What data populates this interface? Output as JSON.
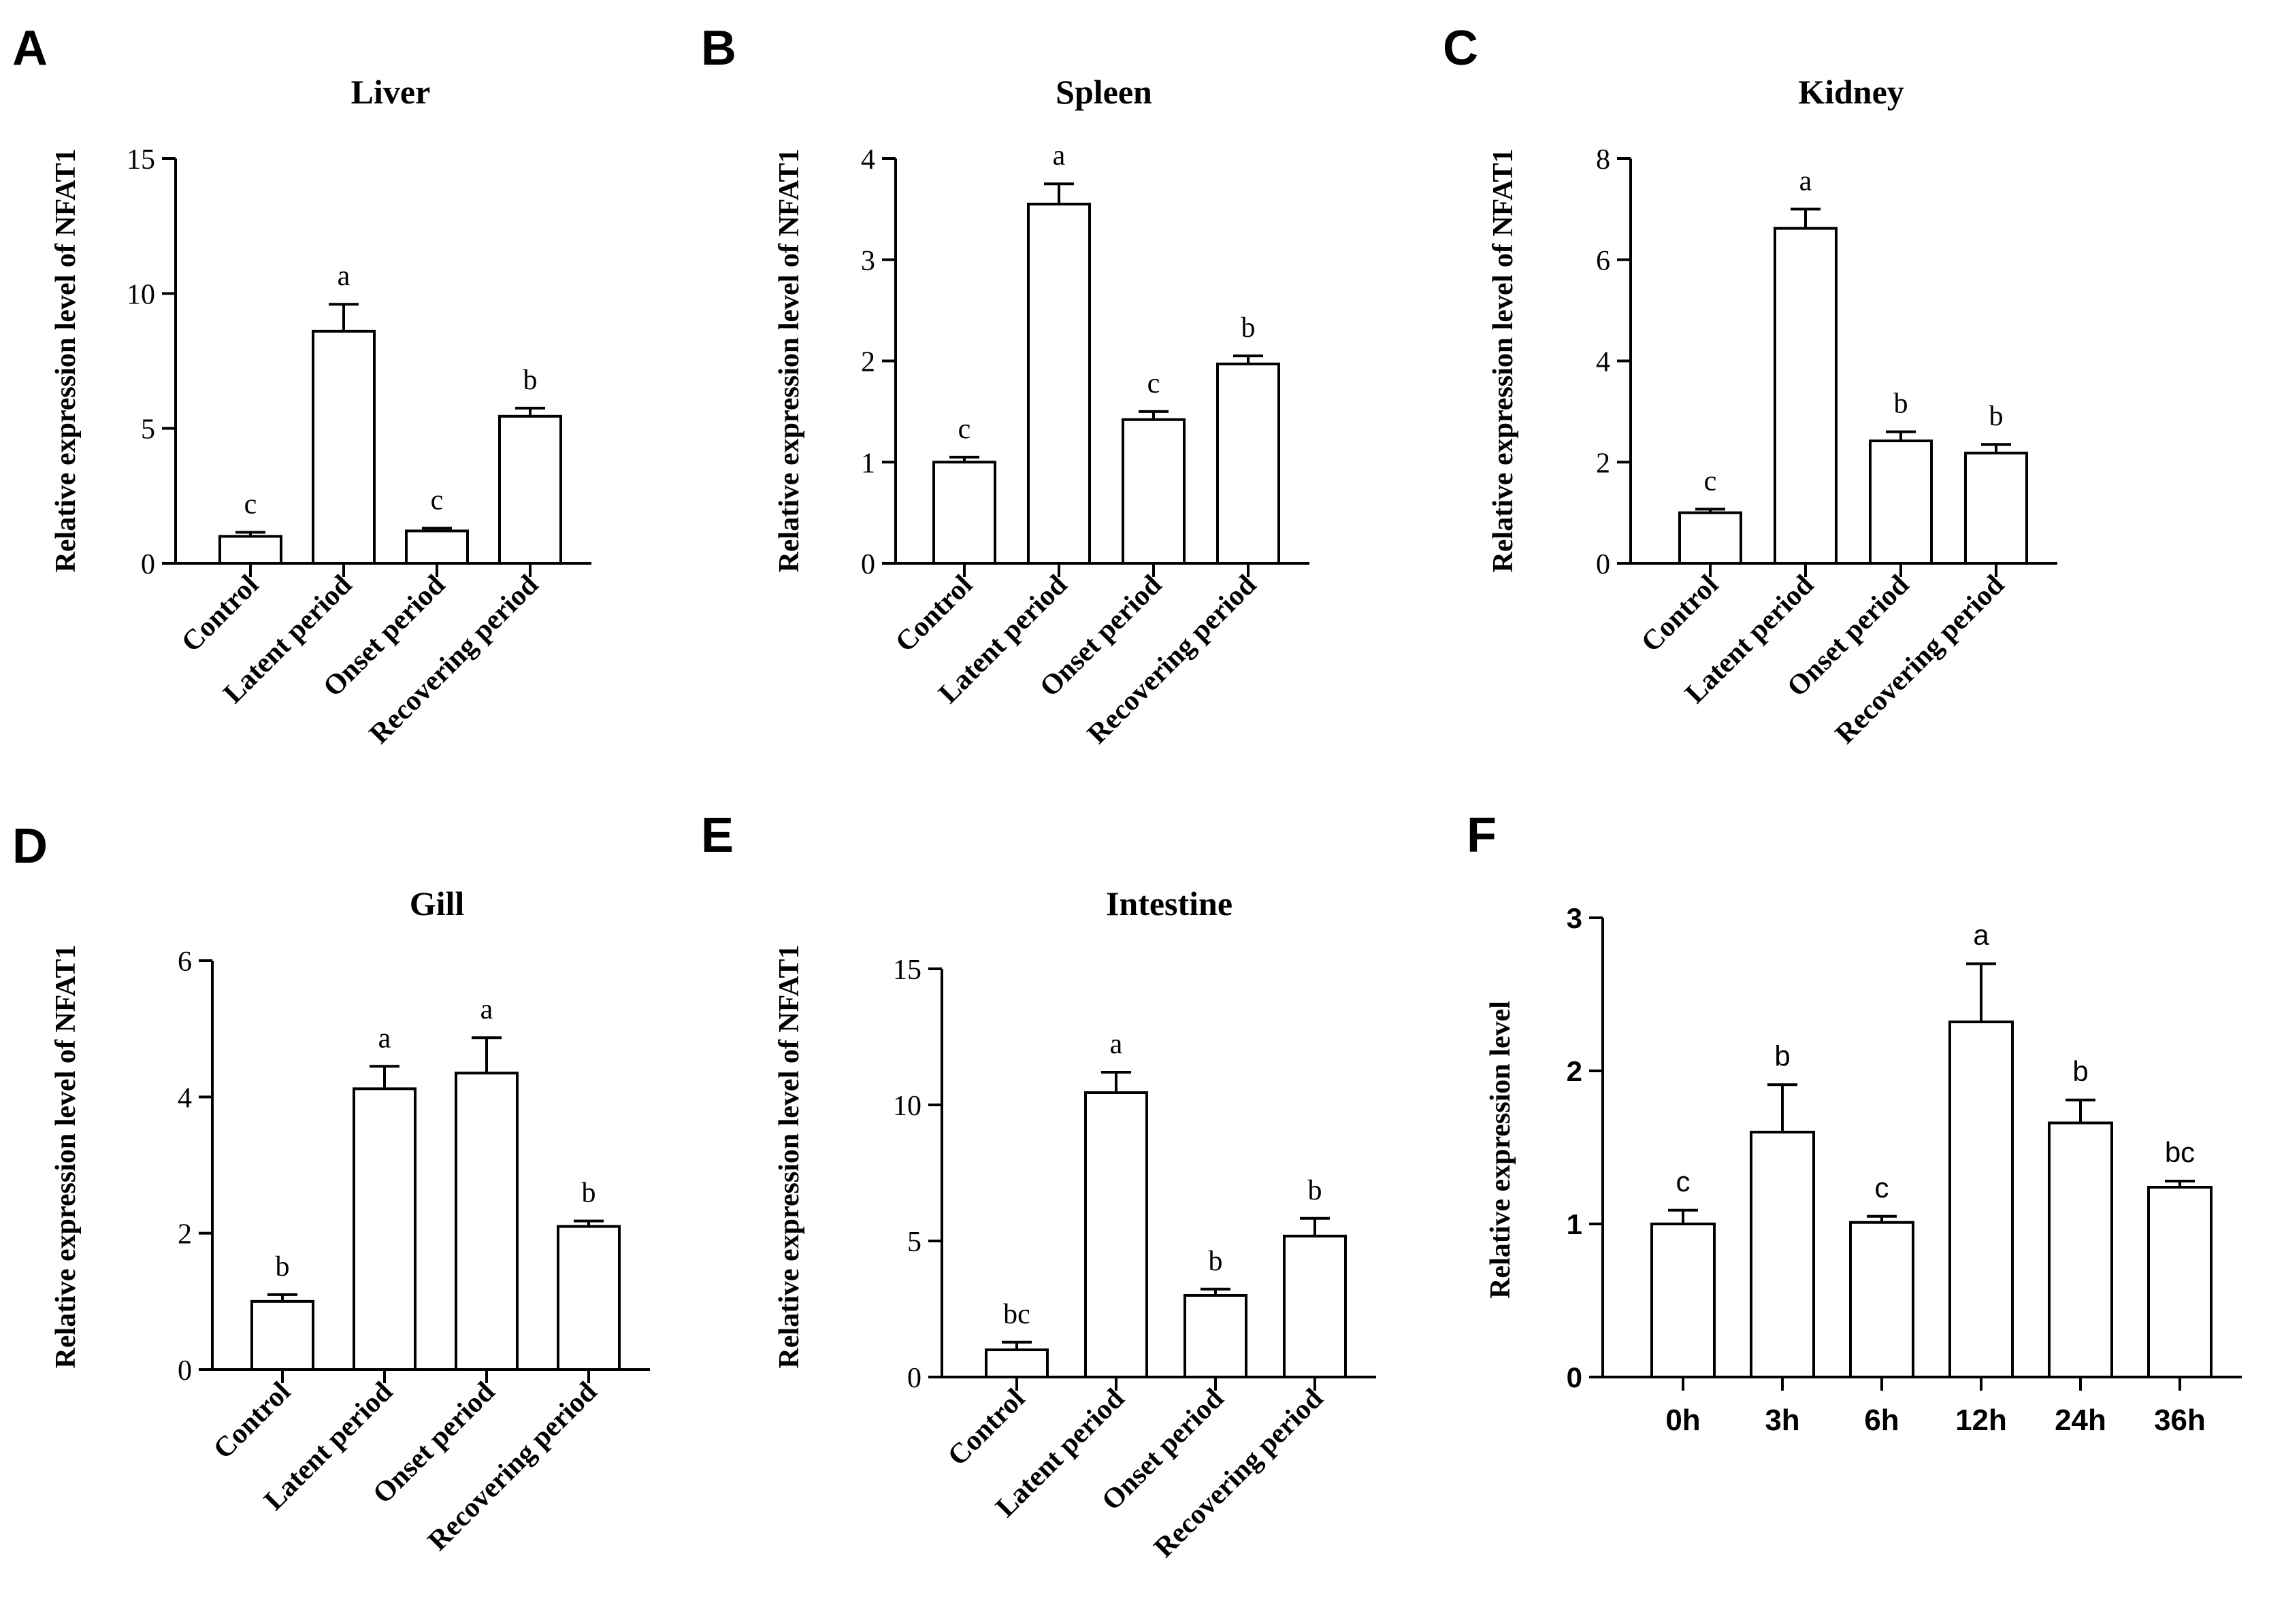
{
  "figure": {
    "ylabel_tissue": "Relative  expression level of NFAT1",
    "ylabel_time": "Relative  expression level"
  },
  "chart_data": [
    {
      "panel": "A",
      "type": "bar",
      "title": "Liver",
      "categories": [
        "Control",
        "Latent period",
        "Onset period",
        "Recovering period"
      ],
      "values": [
        1.0,
        8.6,
        1.2,
        5.45
      ],
      "errors": [
        0.15,
        1.0,
        0.1,
        0.3
      ],
      "letters": [
        "c",
        "a",
        "c",
        "b"
      ],
      "ylim": [
        0,
        15
      ],
      "yticks": [
        "0",
        "5",
        "10",
        "15"
      ],
      "yticks_values": [
        0,
        5,
        10,
        15
      ],
      "ylabel": "Relative  expression level of NFAT1",
      "xlabel": ""
    },
    {
      "panel": "B",
      "type": "bar",
      "title": "Spleen",
      "categories": [
        "Control",
        "Latent period",
        "Onset period",
        "Recovering period"
      ],
      "values": [
        1.0,
        3.55,
        1.42,
        1.97
      ],
      "errors": [
        0.05,
        0.2,
        0.08,
        0.08
      ],
      "letters": [
        "c",
        "a",
        "c",
        "b"
      ],
      "ylim": [
        0,
        4
      ],
      "yticks": [
        "0",
        "1",
        "2",
        "3",
        "4"
      ],
      "yticks_values": [
        0,
        1,
        2,
        3,
        4
      ],
      "ylabel": "Relative  expression level of NFAT1",
      "xlabel": ""
    },
    {
      "panel": "C",
      "type": "bar",
      "title": "Kidney",
      "categories": [
        "Control",
        "Latent period",
        "Onset period",
        "Recovering period"
      ],
      "values": [
        1.0,
        6.62,
        2.42,
        2.18
      ],
      "errors": [
        0.07,
        0.38,
        0.18,
        0.17
      ],
      "letters": [
        "c",
        "a",
        "b",
        "b"
      ],
      "ylim": [
        0,
        8
      ],
      "yticks": [
        "0",
        "2",
        "4",
        "6",
        "8"
      ],
      "yticks_values": [
        0,
        2,
        4,
        6,
        8
      ],
      "ylabel": "Relative  expression level of NFAT1",
      "xlabel": ""
    },
    {
      "panel": "D",
      "type": "bar",
      "title": "Gill",
      "categories": [
        "Control",
        "Latent period",
        "Onset period",
        "Recovering period"
      ],
      "values": [
        1.0,
        4.12,
        4.35,
        2.1
      ],
      "errors": [
        0.1,
        0.33,
        0.52,
        0.08
      ],
      "letters": [
        "b",
        "a",
        "a",
        "b"
      ],
      "ylim": [
        0,
        6
      ],
      "yticks": [
        "0",
        "2",
        "4",
        "6"
      ],
      "yticks_values": [
        0,
        2,
        4,
        6
      ],
      "ylabel": "Relative  expression level of NFAT1",
      "xlabel": ""
    },
    {
      "panel": "E",
      "type": "bar",
      "title": "Intestine",
      "categories": [
        "Control",
        "Latent period",
        "Onset period",
        "Recovering period"
      ],
      "values": [
        1.0,
        10.45,
        3.0,
        5.18
      ],
      "errors": [
        0.28,
        0.75,
        0.23,
        0.65
      ],
      "letters": [
        "bc",
        "a",
        "b",
        "b"
      ],
      "ylim": [
        0,
        15
      ],
      "yticks": [
        "0",
        "5",
        "10",
        "15"
      ],
      "yticks_values": [
        0,
        5,
        10,
        15
      ],
      "ylabel": "Relative  expression level of NFAT1",
      "xlabel": ""
    },
    {
      "panel": "F",
      "type": "bar",
      "title": "",
      "categories": [
        "0h",
        "3h",
        "6h",
        "12h",
        "24h",
        "36h"
      ],
      "values": [
        1.0,
        1.6,
        1.01,
        2.32,
        1.66,
        1.24
      ],
      "errors": [
        0.09,
        0.31,
        0.04,
        0.38,
        0.15,
        0.04
      ],
      "letters": [
        "c",
        "b",
        "c",
        "a",
        "b",
        "bc"
      ],
      "ylim": [
        0,
        3
      ],
      "yticks": [
        "0",
        "1",
        "2",
        "3"
      ],
      "yticks_values": [
        0,
        1,
        2,
        3
      ],
      "ylabel": "Relative  expression level",
      "xlabel": ""
    }
  ]
}
